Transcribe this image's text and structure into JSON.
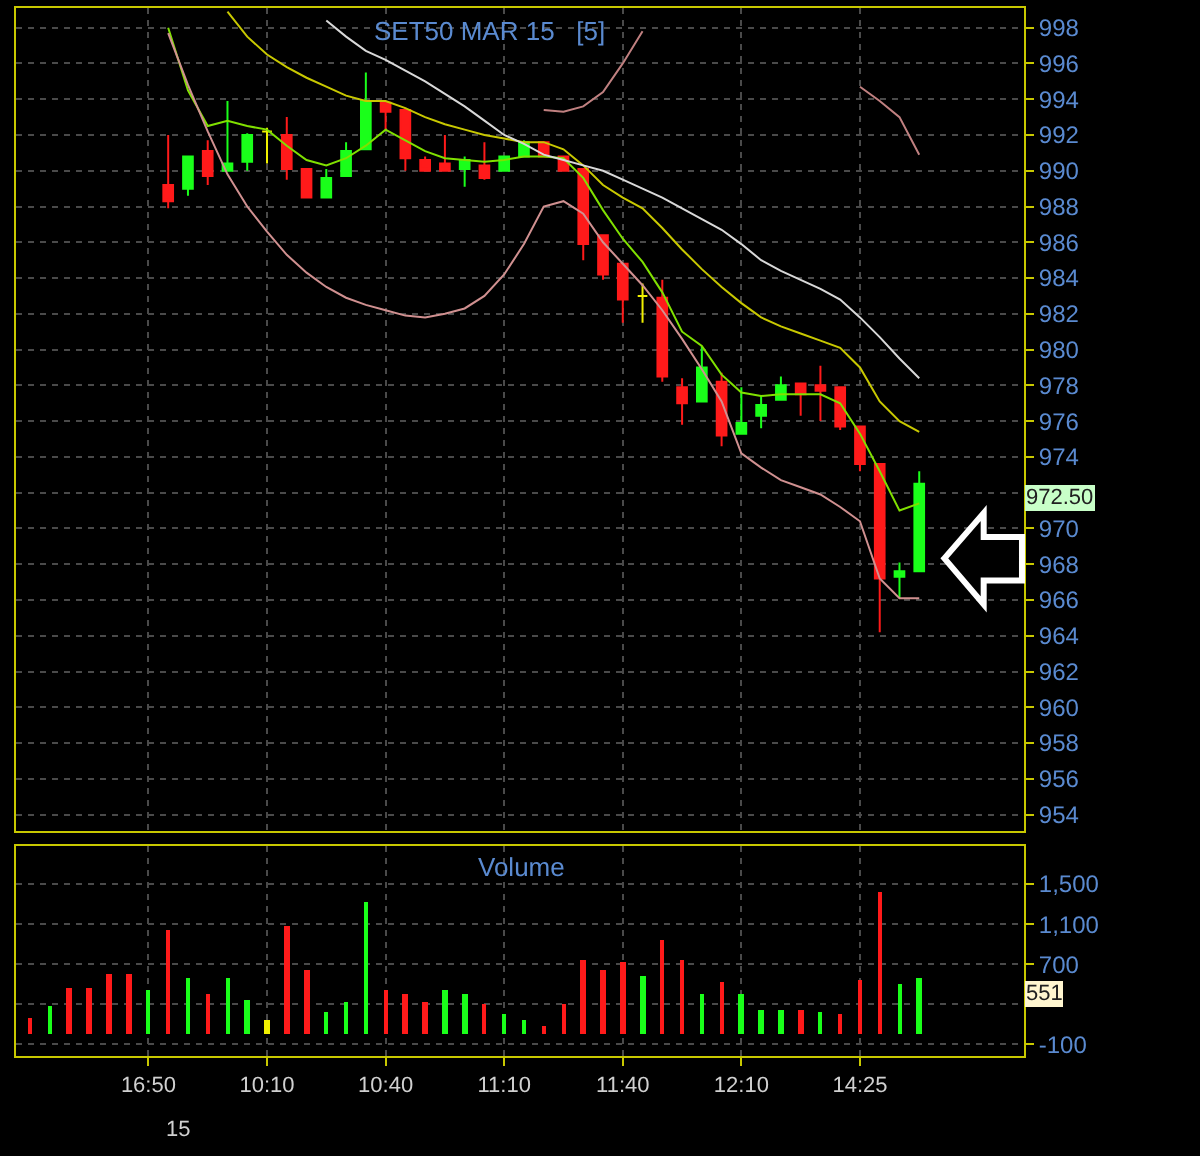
{
  "chart_data": [
    {
      "type": "candlestick",
      "title": "SET50 MAR 15   [5]",
      "categories": [
        null,
        null,
        null,
        null,
        null,
        null,
        null,
        null,
        null,
        null,
        null,
        null,
        null,
        null,
        null,
        null,
        null,
        null,
        null,
        null,
        null,
        null,
        null,
        null,
        null,
        null,
        null,
        null,
        null,
        null,
        null,
        null,
        null,
        null,
        null,
        null,
        null,
        null,
        null,
        null,
        null,
        null,
        null,
        null,
        null,
        null
      ],
      "ohlc": [
        null,
        null,
        null,
        null,
        null,
        null,
        null,
        [
          989.2,
          992.0,
          987.9,
          988.3
        ],
        [
          989.0,
          990.8,
          988.6,
          990.8
        ],
        [
          991.1,
          991.7,
          989.2,
          989.7
        ],
        [
          990.0,
          993.9,
          990.0,
          990.4
        ],
        [
          990.5,
          992.1,
          990.0,
          992.0
        ],
        [
          992.2,
          992.4,
          990.4,
          992.2
        ],
        [
          992.0,
          993.0,
          989.5,
          990.1
        ],
        [
          990.1,
          990.1,
          988.5,
          988.5
        ],
        [
          988.5,
          990.1,
          988.5,
          989.6
        ],
        [
          989.7,
          991.6,
          989.7,
          991.1
        ],
        [
          991.2,
          995.5,
          991.2,
          993.9
        ],
        [
          993.8,
          993.9,
          992.3,
          993.3
        ],
        [
          993.4,
          993.5,
          990.0,
          990.7
        ],
        [
          990.6,
          990.8,
          990.0,
          990.0
        ],
        [
          990.4,
          992.0,
          990.0,
          990.0
        ],
        [
          990.1,
          990.8,
          989.1,
          990.6
        ],
        [
          990.3,
          991.6,
          989.5,
          989.6
        ],
        [
          990.0,
          990.8,
          990.0,
          990.8
        ],
        [
          990.8,
          991.7,
          990.8,
          991.6
        ],
        [
          991.6,
          991.6,
          990.8,
          990.8
        ],
        [
          990.8,
          990.8,
          990.0,
          990.0
        ],
        [
          990.1,
          990.1,
          985.0,
          985.9
        ],
        [
          986.4,
          986.4,
          983.9,
          984.2
        ],
        [
          984.8,
          984.8,
          981.5,
          982.8
        ],
        [
          983.0,
          983.7,
          981.5,
          983.0
        ],
        [
          982.9,
          983.9,
          978.2,
          978.5
        ],
        [
          977.9,
          978.4,
          975.8,
          977.0
        ],
        [
          977.1,
          980.2,
          977.1,
          979.0
        ],
        [
          978.2,
          978.7,
          974.6,
          975.2
        ],
        [
          975.3,
          977.9,
          975.3,
          975.9
        ],
        [
          976.3,
          977.4,
          975.6,
          976.9
        ],
        [
          977.2,
          978.5,
          977.2,
          978.0
        ],
        [
          978.1,
          978.1,
          976.3,
          977.5
        ],
        [
          978.0,
          979.1,
          976.0,
          977.7
        ],
        [
          977.9,
          977.9,
          975.5,
          975.7
        ],
        [
          975.7,
          975.7,
          973.2,
          973.6
        ],
        [
          973.6,
          973.6,
          964.2,
          967.2
        ],
        [
          967.3,
          968.1,
          966.1,
          967.6
        ],
        [
          967.6,
          973.2,
          967.6,
          972.5
        ]
      ],
      "colors": [
        null,
        null,
        null,
        null,
        null,
        null,
        null,
        "#ff1a1a",
        "#1aff1a",
        "#ff1a1a",
        "#1aff1a",
        "#1aff1a",
        "#f0f000",
        "#ff1a1a",
        "#ff1a1a",
        "#1aff1a",
        "#1aff1a",
        "#1aff1a",
        "#ff1a1a",
        "#ff1a1a",
        "#ff1a1a",
        "#ff1a1a",
        "#1aff1a",
        "#ff1a1a",
        "#1aff1a",
        "#1aff1a",
        "#ff1a1a",
        "#ff1a1a",
        "#ff1a1a",
        "#ff1a1a",
        "#ff1a1a",
        "#f0f000",
        "#ff1a1a",
        "#ff1a1a",
        "#1aff1a",
        "#ff1a1a",
        "#1aff1a",
        "#1aff1a",
        "#1aff1a",
        "#ff1a1a",
        "#ff1a1a",
        "#ff1a1a",
        "#ff1a1a",
        "#ff1a1a",
        "#1aff1a",
        "#1aff1a"
      ],
      "series": [
        {
          "type": "line",
          "color": "#80e000",
          "values": [
            null,
            null,
            null,
            null,
            null,
            null,
            null,
            998.0,
            994.5,
            992.5,
            992.8,
            992.5,
            992.3,
            991.4,
            990.6,
            990.3,
            990.7,
            991.4,
            992.3,
            991.7,
            991.1,
            990.7,
            990.6,
            990.5,
            990.6,
            990.8,
            990.8,
            990.7,
            989.6,
            987.8,
            986.2,
            984.9,
            983.2,
            981.0,
            980.2,
            978.6,
            977.6,
            977.4,
            977.5,
            977.5,
            977.5,
            977.0,
            975.3,
            973.2,
            971.0,
            971.4
          ]
        },
        {
          "type": "line",
          "color": "#c8c800",
          "values": [
            null,
            null,
            null,
            null,
            null,
            null,
            null,
            null,
            null,
            null,
            998.9,
            997.5,
            996.5,
            995.8,
            995.2,
            994.7,
            994.2,
            993.9,
            993.9,
            993.5,
            993.0,
            992.6,
            992.3,
            992.0,
            991.8,
            991.6,
            991.6,
            991.2,
            990.3,
            989.2,
            988.5,
            987.9,
            986.8,
            985.6,
            984.5,
            983.5,
            982.6,
            981.8,
            981.3,
            980.9,
            980.5,
            980.1,
            979.0,
            977.1,
            976.0,
            975.4
          ]
        },
        {
          "type": "line",
          "color": "#d8d8d8",
          "values": [
            null,
            null,
            null,
            null,
            null,
            null,
            null,
            null,
            null,
            null,
            null,
            null,
            null,
            null,
            null,
            998.4,
            997.5,
            996.7,
            996.2,
            995.6,
            995.0,
            994.3,
            993.6,
            992.8,
            992.0,
            991.5,
            990.9,
            990.6,
            990.3,
            990.0,
            989.5,
            989.0,
            988.5,
            987.9,
            987.3,
            986.7,
            985.9,
            985.0,
            984.4,
            983.9,
            983.4,
            982.8,
            981.8,
            980.7,
            979.5,
            978.4
          ]
        },
        {
          "type": "line",
          "color": "#c08080",
          "values": [
            null,
            null,
            null,
            null,
            null,
            null,
            null,
            null,
            null,
            null,
            null,
            null,
            null,
            null,
            null,
            null,
            null,
            null,
            null,
            null,
            null,
            null,
            null,
            null,
            null,
            null,
            993.4,
            993.3,
            993.6,
            994.4,
            996.0,
            997.8,
            null,
            null,
            null,
            null,
            null,
            null,
            null,
            null,
            null,
            null,
            994.7,
            993.9,
            993.0,
            990.9
          ]
        },
        {
          "type": "line",
          "color": "#d09090",
          "values": [
            null,
            null,
            null,
            null,
            null,
            null,
            null,
            997.7,
            994.8,
            992.2,
            989.8,
            988.0,
            986.6,
            985.3,
            984.3,
            983.5,
            982.9,
            982.5,
            982.2,
            981.9,
            981.8,
            982.0,
            982.3,
            983.0,
            984.2,
            985.9,
            988.0,
            988.3,
            987.6,
            986.0,
            984.8,
            983.6,
            982.2,
            980.6,
            978.9,
            977.1,
            974.2,
            973.4,
            972.7,
            972.3,
            971.9,
            971.2,
            970.4,
            967.2,
            966.1,
            966.1
          ]
        }
      ],
      "ylim": [
        953.1,
        999.1
      ],
      "yticks": [
        954,
        956,
        958,
        960,
        962,
        964,
        966,
        968,
        970,
        {
          "value": 972,
          "label": null
        },
        974,
        976,
        978,
        980,
        982,
        984,
        986,
        988,
        990,
        992,
        994,
        996,
        998
      ],
      "grid": true,
      "tick_labels": "y",
      "annotations": [
        "972.50"
      ]
    },
    {
      "type": "bar",
      "title": "Volume",
      "categories": [
        null,
        null,
        null,
        null,
        null,
        null,
        "16:50",
        null,
        null,
        null,
        null,
        null,
        "10:10",
        null,
        null,
        null,
        null,
        null,
        "10:40",
        null,
        null,
        null,
        null,
        null,
        "11:10",
        null,
        null,
        null,
        null,
        null,
        "11:40",
        null,
        null,
        null,
        null,
        null,
        "12:10",
        null,
        null,
        null,
        null,
        null,
        "14:25",
        null,
        null,
        null
      ],
      "values": [
        170,
        270,
        460,
        460,
        590,
        590,
        440,
        1040,
        560,
        390,
        560,
        340,
        150,
        1080,
        630,
        220,
        320,
        1310,
        430,
        400,
        320,
        430,
        400,
        290,
        210,
        140,
        80,
        290,
        730,
        630,
        720,
        580,
        940,
        730,
        400,
        510,
        400,
        240,
        240,
        240,
        220,
        210,
        530,
        1410,
        490,
        551
      ],
      "colors": [
        "#ff1a1a",
        "#1aff1a",
        "#ff1a1a",
        "#ff1a1a",
        "#ff1a1a",
        "#ff1a1a",
        "#1aff1a",
        "#ff1a1a",
        "#1aff1a",
        "#ff1a1a",
        "#1aff1a",
        "#1aff1a",
        "#f0f000",
        "#ff1a1a",
        "#ff1a1a",
        "#1aff1a",
        "#1aff1a",
        "#1aff1a",
        "#ff1a1a",
        "#ff1a1a",
        "#ff1a1a",
        "#1aff1a",
        "#1aff1a",
        "#ff1a1a",
        "#1aff1a",
        "#1aff1a",
        "#ff1a1a",
        "#ff1a1a",
        "#ff1a1a",
        "#ff1a1a",
        "#ff1a1a",
        "#1aff1a",
        "#ff1a1a",
        "#ff1a1a",
        "#1aff1a",
        "#ff1a1a",
        "#1aff1a",
        "#1aff1a",
        "#1aff1a",
        "#ff1a1a",
        "#1aff1a",
        "#ff1a1a",
        "#ff1a1a",
        "#ff1a1a",
        "#1aff1a",
        "#1aff1a"
      ],
      "ylim": [
        -215,
        1876
      ],
      "yticks": [
        -100,
        {
          "value": 300,
          "label": null
        },
        700,
        {
          "value": 1100,
          "label": "1,100"
        },
        {
          "value": 1500,
          "label": "1,500"
        }
      ],
      "grid": true,
      "annotations": [
        "551",
        "15"
      ]
    }
  ]
}
